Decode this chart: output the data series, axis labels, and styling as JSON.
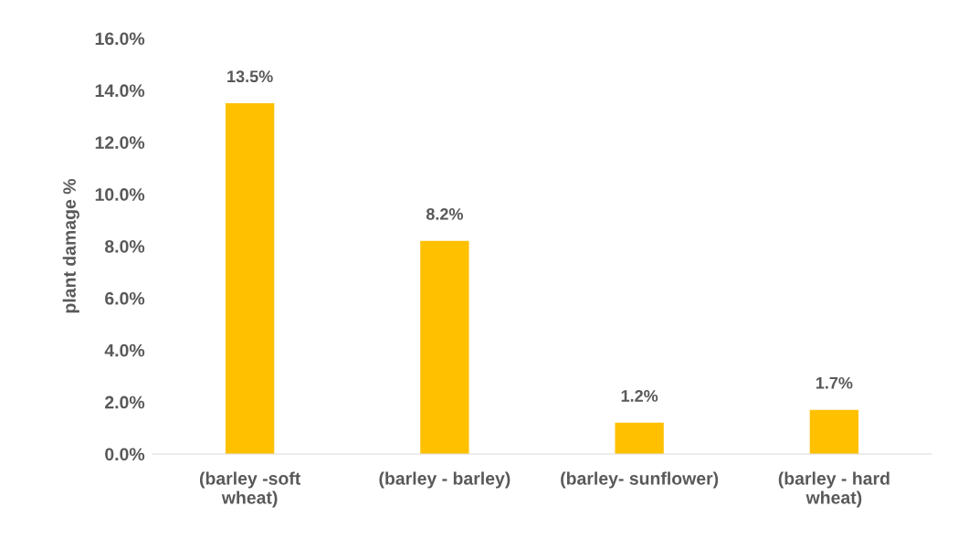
{
  "chart_data": {
    "type": "bar",
    "ylabel": "plant damage %",
    "categories": [
      "(barley -soft\nwheat)",
      "(barley - barley)",
      "(barley- sunflower)",
      "(barley - hard\nwheat)"
    ],
    "values": [
      13.5,
      8.2,
      1.2,
      1.7
    ],
    "value_labels": [
      "13.5%",
      "8.2%",
      "1.2%",
      "1.7%"
    ],
    "color": "#ffc000",
    "ylim": [
      0,
      16
    ],
    "yticks": [
      {
        "value": 0,
        "label": "0.0%"
      },
      {
        "value": 2,
        "label": "2.0%"
      },
      {
        "value": 4,
        "label": "4.0%"
      },
      {
        "value": 6,
        "label": "6.0%"
      },
      {
        "value": 8,
        "label": "8.0%"
      },
      {
        "value": 10,
        "label": "10.0%"
      },
      {
        "value": 12,
        "label": "12.0%"
      },
      {
        "value": 14,
        "label": "14.0%"
      },
      {
        "value": 16,
        "label": "16.0%"
      }
    ],
    "grid": false,
    "legend": false
  }
}
